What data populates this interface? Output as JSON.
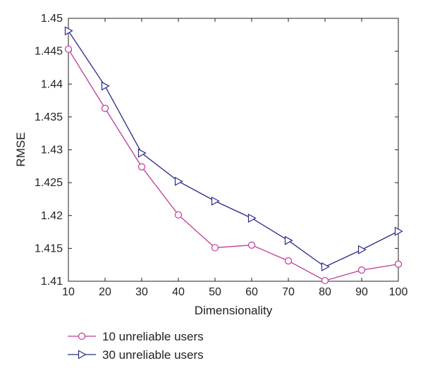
{
  "chart_data": {
    "type": "line",
    "title": "",
    "xlabel": "Dimensionality",
    "ylabel": "RMSE",
    "x": [
      10,
      20,
      30,
      40,
      50,
      60,
      70,
      80,
      90,
      100
    ],
    "xlim": [
      10,
      100
    ],
    "ylim": [
      1.41,
      1.45
    ],
    "x_ticks": [
      "10",
      "20",
      "30",
      "40",
      "50",
      "60",
      "70",
      "80",
      "90",
      "100"
    ],
    "y_ticks": [
      "1.41",
      "1.415",
      "1.42",
      "1.425",
      "1.43",
      "1.435",
      "1.44",
      "1.445",
      "1.45"
    ],
    "grid": false,
    "legend_position": "bottom-left, below plot",
    "series": [
      {
        "name": "10 unreliable users",
        "marker": "circle",
        "color": "#c0399a",
        "values": [
          1.4453,
          1.4363,
          1.4274,
          1.4201,
          1.4151,
          1.4155,
          1.4131,
          1.4101,
          1.4117,
          1.4126
        ]
      },
      {
        "name": "30 unreliable users",
        "marker": "triangle-right",
        "color": "#2a2a8c",
        "values": [
          1.4481,
          1.4397,
          1.4295,
          1.4252,
          1.4222,
          1.4196,
          1.4162,
          1.4122,
          1.4148,
          1.4176
        ]
      }
    ]
  }
}
